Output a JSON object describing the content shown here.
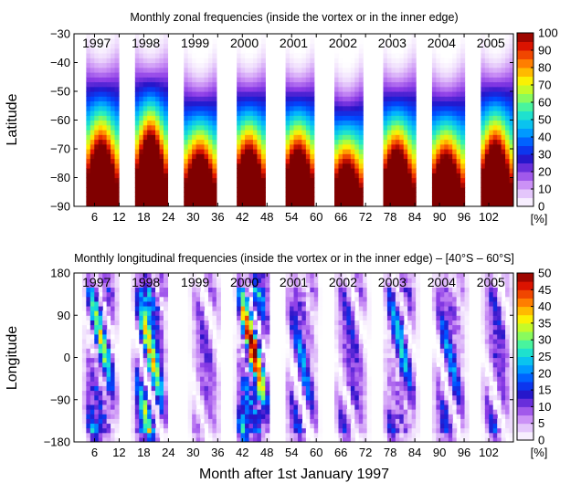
{
  "chart_data": [
    {
      "type": "heatmap",
      "title": "Monthly zonal frequencies (inside the vortex or in the inner edge)",
      "xlabel": "",
      "ylabel": "Latitude",
      "xlim": [
        1,
        108
      ],
      "ylim": [
        -90,
        -30
      ],
      "xticks": [
        6,
        12,
        18,
        24,
        30,
        36,
        42,
        48,
        54,
        60,
        66,
        72,
        78,
        84,
        90,
        96,
        102
      ],
      "yticks": [
        -90,
        -80,
        -70,
        -60,
        -50,
        -40,
        -30
      ],
      "year_labels": [
        "1997",
        "1998",
        "1999",
        "2000",
        "2001",
        "2002",
        "2003",
        "2004",
        "2005"
      ],
      "colorbar": {
        "ticks": [
          0,
          10,
          20,
          30,
          40,
          50,
          60,
          70,
          80,
          90,
          100
        ],
        "unit": "[%]"
      },
      "seasons": [
        {
          "year": "1997",
          "start_month": 4,
          "end_month": 11.5,
          "edge_100_lat": -68,
          "edge_0_lat": -32
        },
        {
          "year": "1998",
          "start_month": 16,
          "end_month": 23.5,
          "edge_100_lat": -65,
          "edge_0_lat": -32
        },
        {
          "year": "1999",
          "start_month": 28,
          "end_month": 35.5,
          "edge_100_lat": -72,
          "edge_0_lat": -38
        },
        {
          "year": "2000",
          "start_month": 40,
          "end_month": 47.5,
          "edge_100_lat": -70,
          "edge_0_lat": -36
        },
        {
          "year": "2001",
          "start_month": 52,
          "end_month": 59.5,
          "edge_100_lat": -70,
          "edge_0_lat": -36
        },
        {
          "year": "2002",
          "start_month": 64,
          "end_month": 71,
          "edge_100_lat": -75,
          "edge_0_lat": -40
        },
        {
          "year": "2003",
          "start_month": 76,
          "end_month": 83.5,
          "edge_100_lat": -70,
          "edge_0_lat": -36
        },
        {
          "year": "2004",
          "start_month": 88,
          "end_month": 95.5,
          "edge_100_lat": -72,
          "edge_0_lat": -38
        },
        {
          "year": "2005",
          "start_month": 100,
          "end_month": 107.5,
          "edge_100_lat": -68,
          "edge_0_lat": -34
        }
      ]
    },
    {
      "type": "heatmap",
      "title": "Monthly longitudinal frequencies (inside the vortex or in the inner edge) – [40°S – 60°S]",
      "xlabel": "Month after 1st January 1997",
      "ylabel": "Longitude",
      "xlim": [
        1,
        108
      ],
      "ylim": [
        -180,
        180
      ],
      "xticks": [
        6,
        12,
        18,
        24,
        30,
        36,
        42,
        48,
        54,
        60,
        66,
        72,
        78,
        84,
        90,
        96,
        102
      ],
      "yticks": [
        -180,
        -90,
        0,
        90,
        180
      ],
      "year_labels": [
        "1997",
        "1998",
        "1999",
        "2000",
        "2001",
        "2002",
        "2003",
        "2004",
        "2005"
      ],
      "colorbar": {
        "ticks": [
          0,
          5,
          10,
          15,
          20,
          25,
          30,
          35,
          40,
          45,
          50
        ],
        "unit": "[%]"
      },
      "seasons": [
        {
          "year": "1997",
          "start_month": 3,
          "end_month": 12,
          "peak": 32
        },
        {
          "year": "1998",
          "start_month": 15,
          "end_month": 24,
          "peak": 40
        },
        {
          "year": "1999",
          "start_month": 29,
          "end_month": 37,
          "peak": 15
        },
        {
          "year": "2000",
          "start_month": 40,
          "end_month": 49,
          "peak": 48
        },
        {
          "year": "2001",
          "start_month": 52,
          "end_month": 61,
          "peak": 22
        },
        {
          "year": "2002",
          "start_month": 64,
          "end_month": 73,
          "peak": 18
        },
        {
          "year": "2003",
          "start_month": 76,
          "end_month": 85,
          "peak": 25
        },
        {
          "year": "2004",
          "start_month": 88,
          "end_month": 97,
          "peak": 22
        },
        {
          "year": "2005",
          "start_month": 100,
          "end_month": 108,
          "peak": 18
        }
      ]
    }
  ]
}
